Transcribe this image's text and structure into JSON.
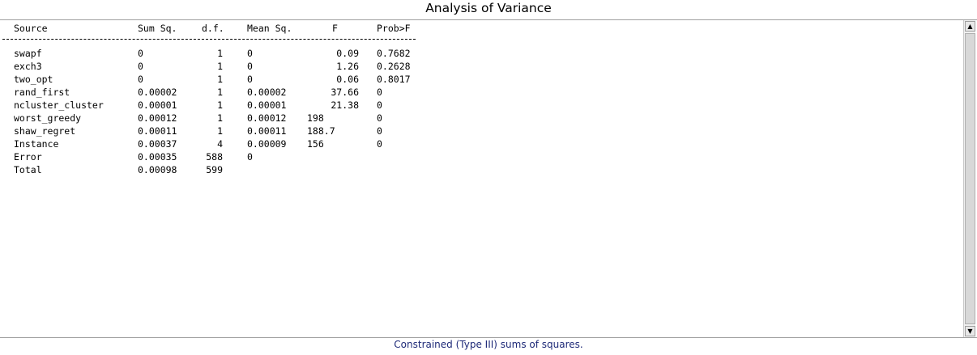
{
  "title": "Analysis of Variance",
  "footer": "Constrained (Type III) sums of squares.",
  "table": {
    "headers": {
      "source": "Source",
      "sum_sq": "Sum Sq.",
      "df": "d.f.",
      "mean_sq": "Mean Sq.",
      "f": "F",
      "prob": "Prob>F"
    },
    "rows": [
      {
        "source": "swapf",
        "sum_sq": "0",
        "df": "1",
        "mean_sq": "0",
        "f": "0.09",
        "prob": "0.7682"
      },
      {
        "source": "exch3",
        "sum_sq": "0",
        "df": "1",
        "mean_sq": "0",
        "f": "1.26",
        "prob": "0.2628"
      },
      {
        "source": "two_opt",
        "sum_sq": "0",
        "df": "1",
        "mean_sq": "0",
        "f": "0.06",
        "prob": "0.8017"
      },
      {
        "source": "rand_first",
        "sum_sq": "0.00002",
        "df": "1",
        "mean_sq": "0.00002",
        "f": "37.66",
        "prob": "0"
      },
      {
        "source": "ncluster_cluster",
        "sum_sq": "0.00001",
        "df": "1",
        "mean_sq": "0.00001",
        "f": "21.38",
        "prob": "0"
      },
      {
        "source": "worst_greedy",
        "sum_sq": "0.00012",
        "df": "1",
        "mean_sq": "0.00012",
        "f": "198",
        "prob": "0"
      },
      {
        "source": "shaw_regret",
        "sum_sq": "0.00011",
        "df": "1",
        "mean_sq": "0.00011",
        "f": "188.7",
        "prob": "0"
      },
      {
        "source": "Instance",
        "sum_sq": "0.00037",
        "df": "4",
        "mean_sq": "0.00009",
        "f": "156",
        "prob": "0"
      },
      {
        "source": "Error",
        "sum_sq": "0.00035",
        "df": "588",
        "mean_sq": "0",
        "f": "",
        "prob": ""
      },
      {
        "source": "Total",
        "sum_sq": "0.00098",
        "df": "599",
        "mean_sq": "",
        "f": "",
        "prob": ""
      }
    ]
  },
  "icons": {
    "scroll_up": "triangle-up",
    "scroll_down": "triangle-down"
  }
}
